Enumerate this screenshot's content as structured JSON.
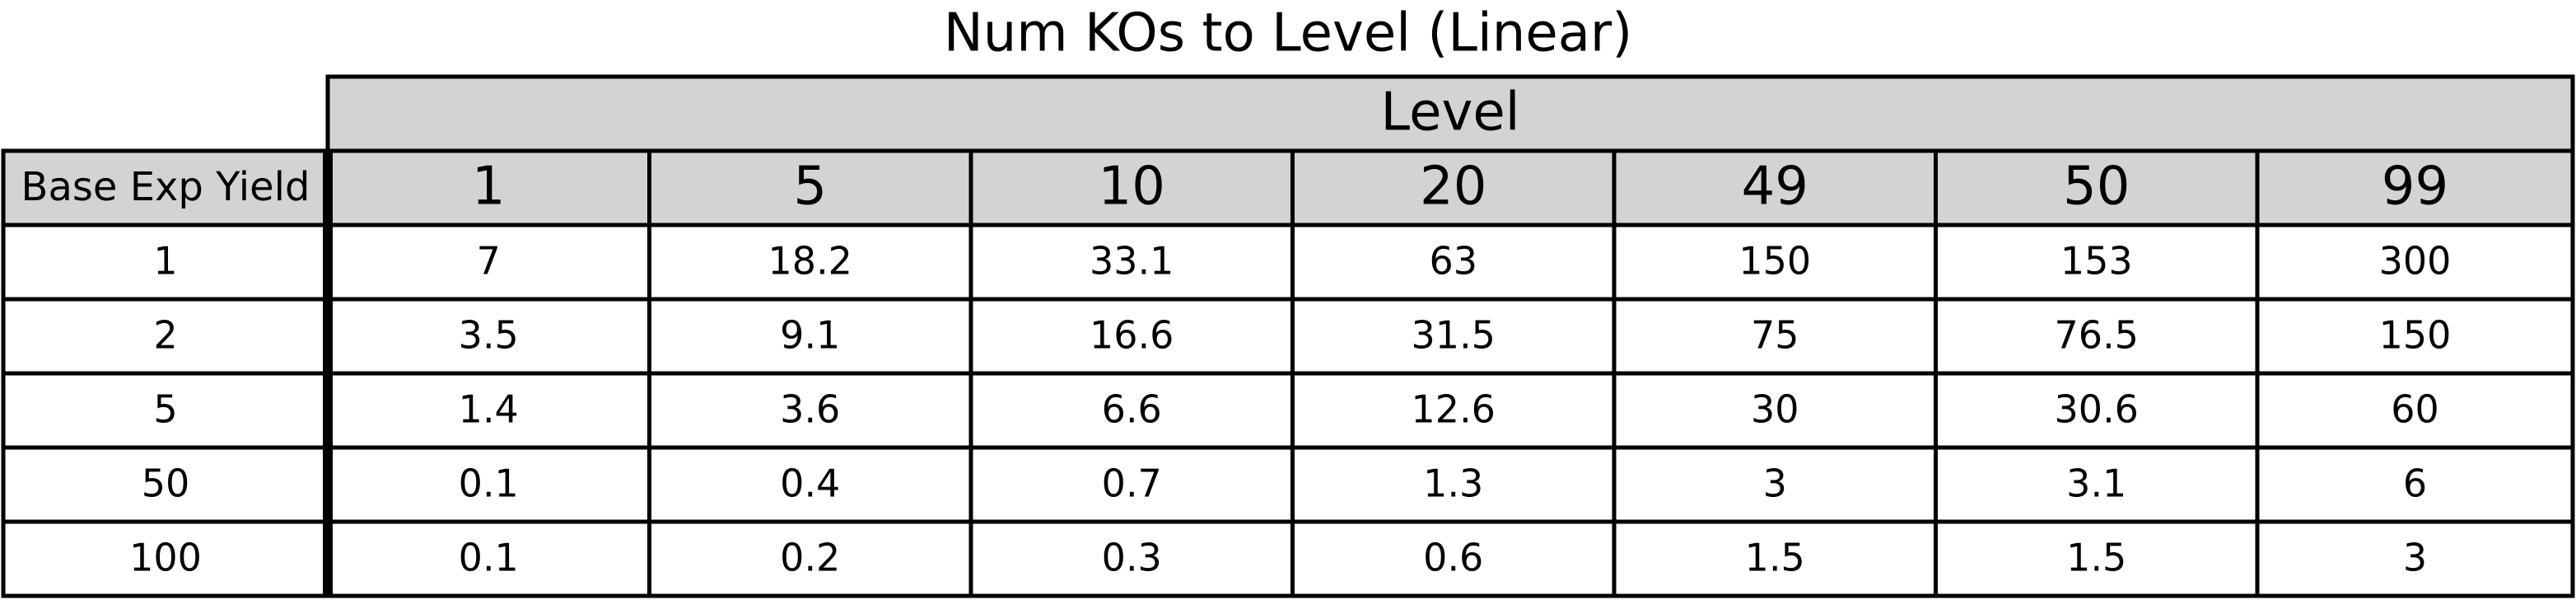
{
  "chart_data": {
    "type": "table",
    "title": "Num KOs to Level (Linear)",
    "column_group_label": "Level",
    "row_header_label": "Base Exp Yield",
    "columns": [
      "1",
      "5",
      "10",
      "20",
      "49",
      "50",
      "99"
    ],
    "rows": [
      {
        "label": "1",
        "values": [
          "7",
          "18.2",
          "33.1",
          "63",
          "150",
          "153",
          "300"
        ]
      },
      {
        "label": "2",
        "values": [
          "3.5",
          "9.1",
          "16.6",
          "31.5",
          "75",
          "76.5",
          "150"
        ]
      },
      {
        "label": "5",
        "values": [
          "1.4",
          "3.6",
          "6.6",
          "12.6",
          "30",
          "30.6",
          "60"
        ]
      },
      {
        "label": "50",
        "values": [
          "0.1",
          "0.4",
          "0.7",
          "1.3",
          "3",
          "3.1",
          "6"
        ]
      },
      {
        "label": "100",
        "values": [
          "0.1",
          "0.2",
          "0.3",
          "0.6",
          "1.5",
          "1.5",
          "3"
        ]
      }
    ],
    "colors": {
      "header_fill": "#d3d3d3",
      "cell_fill": "#ffffff",
      "border": "#000000"
    }
  }
}
